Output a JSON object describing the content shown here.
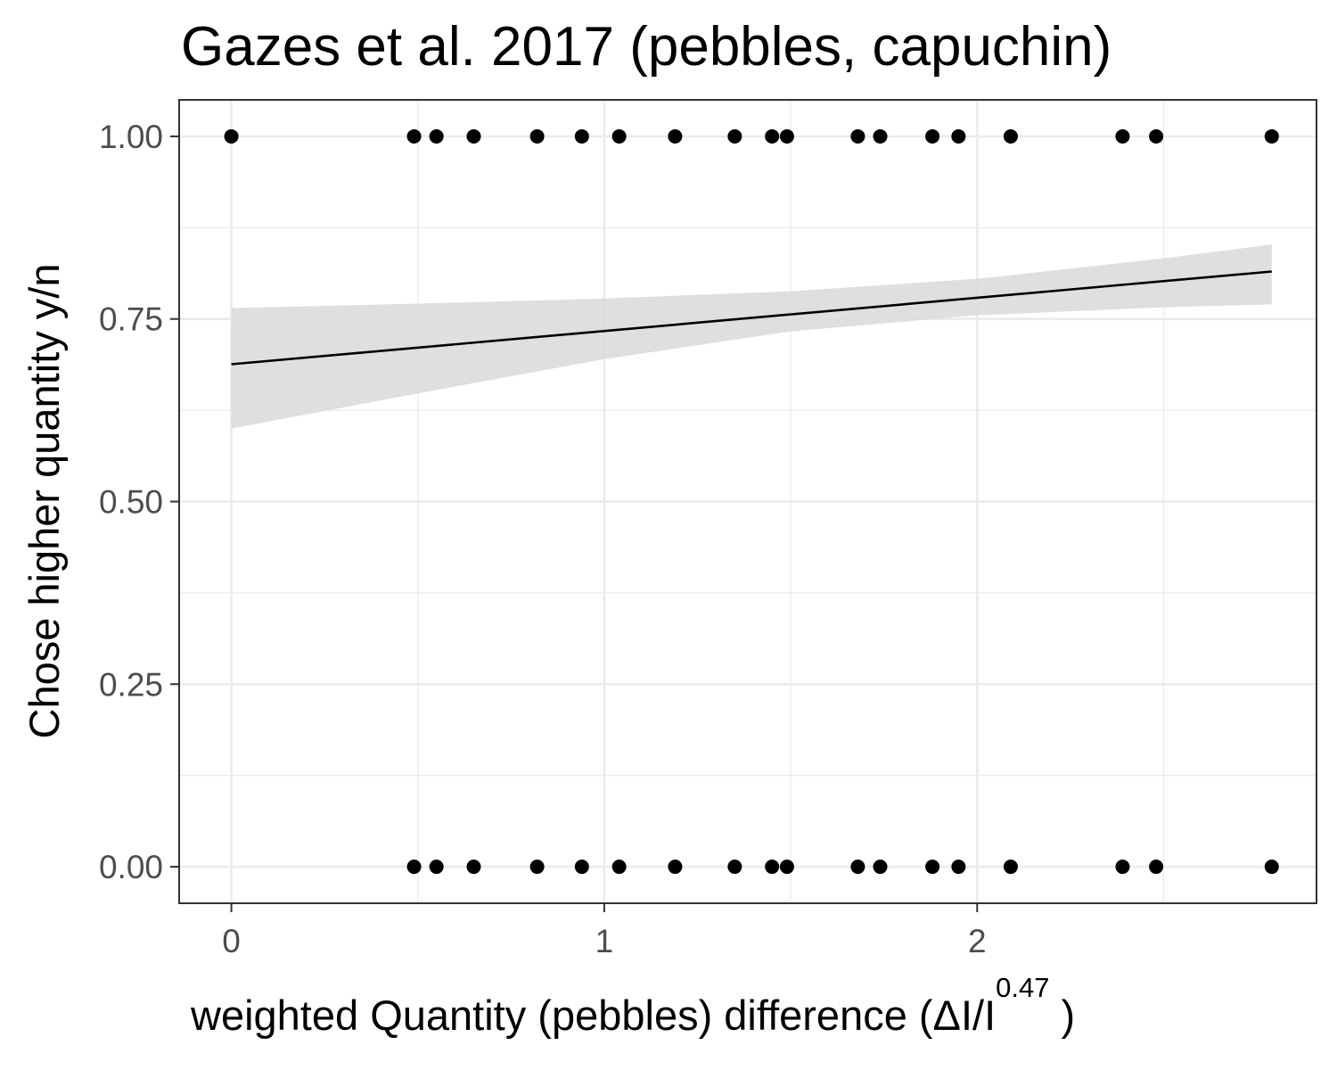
{
  "chart_data": {
    "type": "scatter",
    "title": "Gazes et al. 2017 (pebbles, capuchin)",
    "xlabel": {
      "main": "weighted  Quantity (pebbles)  difference (ΔI/I",
      "superscript": "0.47",
      "close": " )"
    },
    "ylabel": "Chose higher quantity y/n",
    "xlim": [
      -0.14,
      2.91
    ],
    "ylim": [
      -0.05,
      1.05
    ],
    "x_ticks": [
      0,
      1,
      2
    ],
    "x_tick_labels": [
      "0",
      "1",
      "2"
    ],
    "y_ticks": [
      0,
      0.25,
      0.5,
      0.75,
      1
    ],
    "y_tick_labels": [
      "0.00",
      "0.25",
      "0.50",
      "0.75",
      "1.00"
    ],
    "x_minor_ticks": [
      0.5,
      1.5,
      2.5
    ],
    "y_minor_ticks": [
      0.125,
      0.375,
      0.625,
      0.875
    ],
    "grid": true,
    "series": [
      {
        "type": "scatter",
        "x": [
          0,
          0.49,
          0.55,
          0.65,
          0.82,
          0.94,
          1.04,
          1.19,
          1.35,
          1.45,
          1.49,
          1.68,
          1.74,
          1.88,
          1.95,
          2.09,
          2.39,
          2.48,
          2.79,
          0.49,
          0.55,
          0.65,
          0.82,
          0.94,
          1.04,
          1.19,
          1.35,
          1.45,
          1.49,
          1.68,
          1.74,
          1.88,
          1.95,
          2.09,
          2.39,
          2.48,
          2.79
        ],
        "y": [
          1,
          1,
          1,
          1,
          1,
          1,
          1,
          1,
          1,
          1,
          1,
          1,
          1,
          1,
          1,
          1,
          1,
          1,
          1,
          0,
          0,
          0,
          0,
          0,
          0,
          0,
          0,
          0,
          0,
          0,
          0,
          0,
          0,
          0,
          0,
          0,
          0
        ]
      },
      {
        "type": "line",
        "x": [
          0,
          2.79
        ],
        "y": [
          0.688,
          0.815
        ]
      },
      {
        "type": "area",
        "x": [
          0,
          0.5,
          1,
          1.5,
          2,
          2.5,
          2.79
        ],
        "lower": [
          0.6,
          0.648,
          0.695,
          0.733,
          0.755,
          0.766,
          0.77
        ],
        "upper": [
          0.765,
          0.771,
          0.778,
          0.788,
          0.805,
          0.833,
          0.852
        ]
      }
    ],
    "colors": {
      "points": "#000000",
      "line": "#000000",
      "band": "#d9d9d9",
      "grid": "#ebebeb",
      "panel_border": "#333333",
      "tick_text": "#4d4d4d"
    }
  }
}
